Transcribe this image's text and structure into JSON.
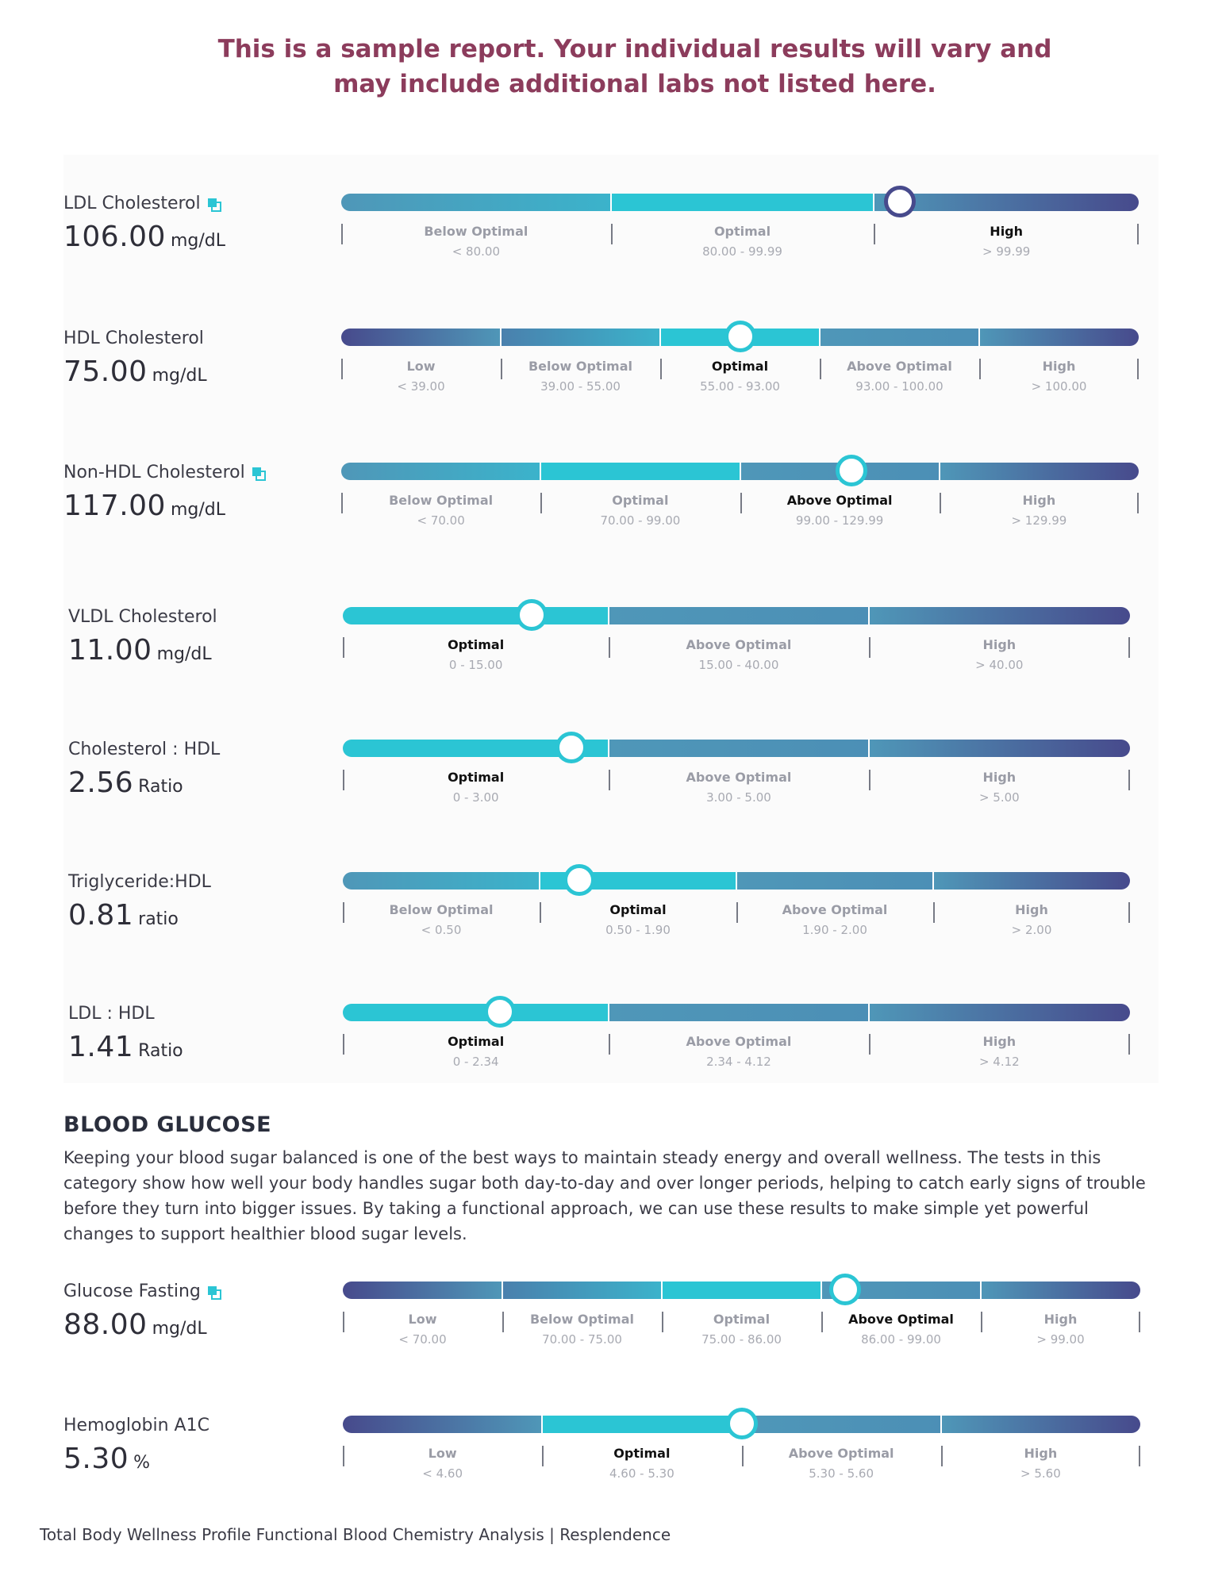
{
  "notice": {
    "line1": "This is a sample report. Your individual results will vary and",
    "line2": "may include additional labs not listed here."
  },
  "colors": {
    "teal": "#2bc5d4",
    "mid": "#4f97b8",
    "navy": "#474a8c",
    "notice": "#8c3c5c"
  },
  "markers": [
    {
      "name": "LDL Cholesterol",
      "info_icon": true,
      "value": "106.00",
      "unit": "mg/dL",
      "current_zone": 2,
      "dot_fraction": 0.7,
      "zones": [
        {
          "label": "Below Optimal",
          "range": "< 80.00",
          "tone": "mid"
        },
        {
          "label": "Optimal",
          "range": "80.00 - 99.99",
          "tone": "teal"
        },
        {
          "label": "High",
          "range": "> 99.99",
          "tone": "navy"
        }
      ],
      "zone_fractions": [
        0.338,
        0.33,
        0.332
      ]
    },
    {
      "name": "HDL Cholesterol",
      "info_icon": false,
      "value": "75.00",
      "unit": "mg/dL",
      "current_zone": 2,
      "dot_fraction": 0.5,
      "zones": [
        {
          "label": "Low",
          "range": "< 39.00",
          "tone": "navy"
        },
        {
          "label": "Below Optimal",
          "range": "39.00 - 55.00",
          "tone": "mid"
        },
        {
          "label": "Optimal",
          "range": "55.00 - 93.00",
          "tone": "teal"
        },
        {
          "label": "Above Optimal",
          "range": "93.00 - 100.00",
          "tone": "mid"
        },
        {
          "label": "High",
          "range": "> 100.00",
          "tone": "navy"
        }
      ],
      "zone_fractions": [
        0.2,
        0.2,
        0.2,
        0.2,
        0.2
      ]
    },
    {
      "name": "Non-HDL Cholesterol",
      "info_icon": true,
      "value": "117.00",
      "unit": "mg/dL",
      "current_zone": 2,
      "dot_fraction": 0.64,
      "zones": [
        {
          "label": "Below Optimal",
          "range": "< 70.00",
          "tone": "mid"
        },
        {
          "label": "Optimal",
          "range": "70.00 - 99.00",
          "tone": "teal"
        },
        {
          "label": "Above Optimal",
          "range": "99.00 - 129.99",
          "tone": "mid"
        },
        {
          "label": "High",
          "range": "> 129.99",
          "tone": "navy"
        }
      ],
      "zone_fractions": [
        0.25,
        0.25,
        0.25,
        0.25
      ]
    },
    {
      "name": "VLDL Cholesterol",
      "info_icon": false,
      "value": "11.00",
      "unit": "mg/dL",
      "current_zone": 0,
      "dot_fraction": 0.24,
      "zones": [
        {
          "label": "Optimal",
          "range": "0 - 15.00",
          "tone": "teal"
        },
        {
          "label": "Above Optimal",
          "range": "15.00 - 40.00",
          "tone": "mid"
        },
        {
          "label": "High",
          "range": "> 40.00",
          "tone": "navy"
        }
      ],
      "zone_fractions": [
        0.338,
        0.33,
        0.332
      ]
    },
    {
      "name": "Cholesterol : HDL",
      "info_icon": false,
      "value": "2.56",
      "unit": "Ratio",
      "current_zone": 0,
      "dot_fraction": 0.29,
      "zones": [
        {
          "label": "Optimal",
          "range": "0 - 3.00",
          "tone": "teal"
        },
        {
          "label": "Above Optimal",
          "range": "3.00 - 5.00",
          "tone": "mid"
        },
        {
          "label": "High",
          "range": "> 5.00",
          "tone": "navy"
        }
      ],
      "zone_fractions": [
        0.338,
        0.33,
        0.332
      ]
    },
    {
      "name": "Triglyceride:HDL",
      "info_icon": false,
      "value": "0.81",
      "unit": "ratio",
      "current_zone": 1,
      "dot_fraction": 0.3,
      "zones": [
        {
          "label": "Below Optimal",
          "range": "< 0.50",
          "tone": "mid"
        },
        {
          "label": "Optimal",
          "range": "0.50 - 1.90",
          "tone": "teal"
        },
        {
          "label": "Above Optimal",
          "range": "1.90 - 2.00",
          "tone": "mid"
        },
        {
          "label": "High",
          "range": "> 2.00",
          "tone": "navy"
        }
      ],
      "zone_fractions": [
        0.25,
        0.25,
        0.25,
        0.25
      ]
    },
    {
      "name": "LDL : HDL",
      "info_icon": false,
      "value": "1.41",
      "unit": "Ratio",
      "current_zone": 0,
      "dot_fraction": 0.2,
      "zones": [
        {
          "label": "Optimal",
          "range": "0 - 2.34",
          "tone": "teal"
        },
        {
          "label": "Above Optimal",
          "range": "2.34 - 4.12",
          "tone": "mid"
        },
        {
          "label": "High",
          "range": "> 4.12",
          "tone": "navy"
        }
      ],
      "zone_fractions": [
        0.338,
        0.33,
        0.332
      ]
    }
  ],
  "glucose_section": {
    "title": "BLOOD GLUCOSE",
    "description": "Keeping your blood sugar balanced is one of the best ways to maintain steady energy and overall wellness. The tests in this category show how well your body handles sugar both day-to-day and over longer periods, helping to catch early signs of trouble before they turn into bigger issues. By taking a functional approach, we can use these results to make simple yet powerful changes to support healthier blood sugar levels."
  },
  "glucose_markers": [
    {
      "name": "Glucose Fasting",
      "info_icon": true,
      "value": "88.00",
      "unit": "mg/dL",
      "current_zone": 3,
      "dot_fraction": 0.63,
      "zones": [
        {
          "label": "Low",
          "range": "< 70.00",
          "tone": "navy"
        },
        {
          "label": "Below Optimal",
          "range": "70.00 - 75.00",
          "tone": "mid"
        },
        {
          "label": "Optimal",
          "range": "75.00 - 86.00",
          "tone": "teal"
        },
        {
          "label": "Above Optimal",
          "range": "86.00 - 99.00",
          "tone": "mid"
        },
        {
          "label": "High",
          "range": "> 99.00",
          "tone": "navy"
        }
      ],
      "zone_fractions": [
        0.2,
        0.2,
        0.2,
        0.2,
        0.2
      ]
    },
    {
      "name": "Hemoglobin A1C",
      "info_icon": false,
      "value": "5.30",
      "unit": "%",
      "current_zone": 1,
      "dot_fraction": 0.5,
      "zones": [
        {
          "label": "Low",
          "range": "< 4.60",
          "tone": "navy"
        },
        {
          "label": "Optimal",
          "range": "4.60 - 5.30",
          "tone": "teal"
        },
        {
          "label": "Above Optimal",
          "range": "5.30 - 5.60",
          "tone": "mid"
        },
        {
          "label": "High",
          "range": "> 5.60",
          "tone": "navy"
        }
      ],
      "zone_fractions": [
        0.25,
        0.25,
        0.25,
        0.25
      ]
    }
  ],
  "footer": "Total Body Wellness Profile Functional Blood Chemistry Analysis | Resplendence"
}
